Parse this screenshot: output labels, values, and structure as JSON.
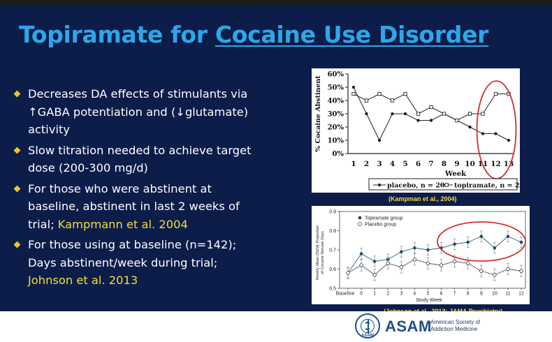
{
  "slide": {
    "title_part1": "Topiramate for ",
    "title_link": "Cocaine Use Disorder",
    "bullets": [
      {
        "text": "Decreases DA effects of stimulants via ↑GABA  potentiation and (↓glutamate) activity",
        "highlight": ""
      },
      {
        "text": "Slow titration needed to achieve target dose (200-300 mg/d)",
        "highlight": ""
      },
      {
        "text": "For those who were abstinent at baseline, abstinent in last 2 weeks of trial; ",
        "highlight": "Kampmann et al. 2004"
      },
      {
        "text": "For those using at baseline (n=142); Days abstinent/week during trial; ",
        "highlight": "Johnson et al. 2013"
      }
    ],
    "citation1": "(Kampman et al., 2004)",
    "citation2": "(Johnson et al., 2013; JAMA Psychiatry)",
    "colors": {
      "background": "#0c1d4a",
      "title": "#2ea6e8",
      "highlight": "#f5de3a",
      "bullet": "#f2c12e",
      "circle": "#d0312d"
    }
  },
  "logo": {
    "seal_text": "ASAM",
    "name": "ASAM",
    "full_line1": "American Society of",
    "full_line2": "Addiction Medicine"
  },
  "chart_data": [
    {
      "type": "line",
      "xlabel": "Week",
      "ylabel": "% Cocaine Abstinent",
      "categories": [
        "1",
        "2",
        "3",
        "4",
        "5",
        "6",
        "7",
        "8",
        "9",
        "10",
        "11",
        "12",
        "13"
      ],
      "y_ticks": [
        "0%",
        "10%",
        "20%",
        "30%",
        "40%",
        "50%",
        "60%"
      ],
      "ylim": [
        0,
        60
      ],
      "series": [
        {
          "name": "placebo, n = 20",
          "marker": "filled",
          "values": [
            50,
            30,
            10,
            30,
            30,
            25,
            25,
            30,
            25,
            20,
            15,
            15,
            10
          ]
        },
        {
          "name": "topiramate, n = 20",
          "marker": "open",
          "values": [
            45,
            40,
            45,
            40,
            45,
            30,
            35,
            30,
            25,
            30,
            30,
            45,
            45
          ]
        }
      ],
      "highlight": "red ellipse around weeks 11-13",
      "legend": "bottom"
    },
    {
      "type": "line",
      "xlabel": "Study Week",
      "ylabel_line1": "Weekly Mean (SEM) Proportion",
      "ylabel_line2": "of Cocaine Nonuse Days",
      "categories": [
        "Baseline",
        "0",
        "1",
        "2",
        "3",
        "4",
        "5",
        "6",
        "7",
        "8",
        "9",
        "10",
        "11",
        "12"
      ],
      "y_ticks": [
        "0.5",
        "0.6",
        "0.7",
        "0.8",
        "0.9"
      ],
      "ylim": [
        0.5,
        0.9
      ],
      "series": [
        {
          "name": "Topiramate group",
          "marker": "filled",
          "values": [
            0.58,
            0.68,
            0.64,
            0.65,
            0.69,
            0.71,
            0.7,
            0.71,
            0.73,
            0.74,
            0.77,
            0.71,
            0.77,
            0.74
          ]
        },
        {
          "name": "Placebo group",
          "marker": "open",
          "values": [
            0.58,
            0.62,
            0.57,
            0.63,
            0.61,
            0.65,
            0.63,
            0.62,
            0.64,
            0.63,
            0.59,
            0.57,
            0.6,
            0.59
          ]
        }
      ],
      "highlight": "red ellipse around weeks 7-12",
      "legend": "top-left"
    }
  ]
}
